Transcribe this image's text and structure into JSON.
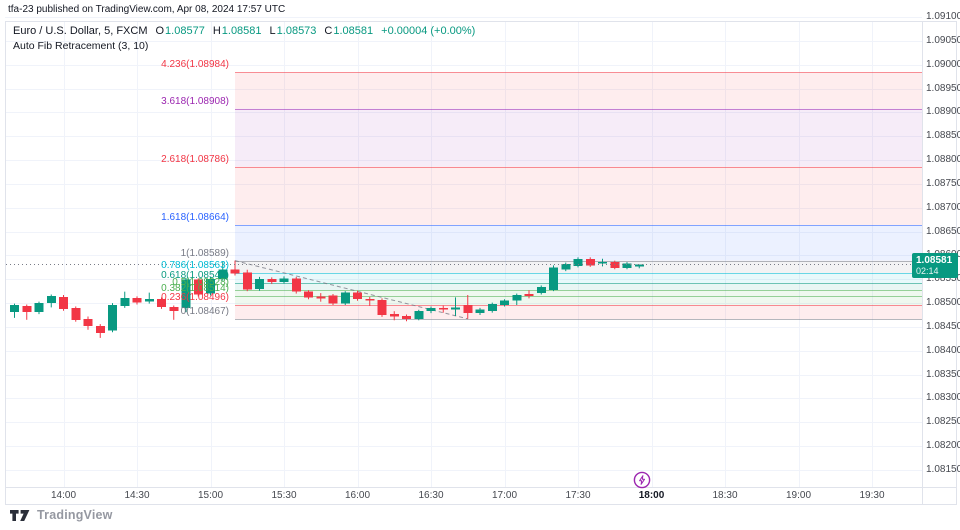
{
  "attribution": "tfa-23 published on TradingView.com, Apr 08, 2024 17:57 UTC",
  "legend": {
    "title": "Euro / U.S. Dollar, 5, FXCM",
    "ohlc": [
      {
        "label": "O",
        "value": "1.08577"
      },
      {
        "label": "H",
        "value": "1.08581"
      },
      {
        "label": "L",
        "value": "1.08573"
      },
      {
        "label": "C",
        "value": "1.08581"
      }
    ],
    "change": "+0.00004 (+0.00%)",
    "indicator": "Auto Fib Retracement (3, 10)"
  },
  "price_badge": {
    "price": "1.08581",
    "countdown": "02:14",
    "color": "#089981"
  },
  "logo": {
    "text": "TradingView"
  },
  "colors": {
    "up": "#089981",
    "down": "#f23645",
    "grid": "#f0f3fa",
    "border": "#e0e3eb",
    "axis_text": "#45484f",
    "title_text": "#131722",
    "badge_bg": "#089981",
    "event": "#9c27b0",
    "price_line": "#787b86",
    "pivot_line": "#787b86"
  },
  "chart_data": {
    "type": "candlestick",
    "title": "Euro / U.S. Dollar, 5, FXCM",
    "interval_minutes": 5,
    "last_price": 1.08581,
    "ylim": [
      1.0815,
      1.091
    ],
    "grid": true,
    "price_axis": {
      "step": 0.0005,
      "labels": [
        "1.09100",
        "1.09050",
        "1.09000",
        "1.08950",
        "1.08900",
        "1.08850",
        "1.08800",
        "1.08750",
        "1.08700",
        "1.08650",
        "1.08600",
        "1.08550",
        "1.08500",
        "1.08450",
        "1.08400",
        "1.08350",
        "1.08300",
        "1.08250",
        "1.08200",
        "1.08150"
      ]
    },
    "time_axis": {
      "ticks": [
        {
          "label": "14:00",
          "em": false
        },
        {
          "label": "14:30",
          "em": false
        },
        {
          "label": "15:00",
          "em": false
        },
        {
          "label": "15:30",
          "em": false
        },
        {
          "label": "16:00",
          "em": false
        },
        {
          "label": "16:30",
          "em": false
        },
        {
          "label": "17:00",
          "em": false
        },
        {
          "label": "17:30",
          "em": false
        },
        {
          "label": "18:00",
          "em": true
        },
        {
          "label": "18:30",
          "em": false
        },
        {
          "label": "19:00",
          "em": false
        },
        {
          "label": "19:30",
          "em": false
        }
      ]
    },
    "event_marker": {
      "time": "17:56",
      "icon": "lightning-icon",
      "color": "#9c27b0"
    },
    "fib": {
      "name": "Auto Fib Retracement (3, 10)",
      "start": {
        "time": "15:10",
        "price": 1.08589
      },
      "end": {
        "time": "16:45",
        "price": 1.08467
      },
      "levels": [
        {
          "level": "4.236",
          "price": 1.08984,
          "color": "#f23645",
          "label": "4.236(1.08984)"
        },
        {
          "level": "3.618",
          "price": 1.08908,
          "color": "#9c27b0",
          "label": "3.618(1.08908)"
        },
        {
          "level": "2.618",
          "price": 1.08786,
          "color": "#f23645",
          "label": "2.618(1.08786)"
        },
        {
          "level": "1.618",
          "price": 1.08664,
          "color": "#2962ff",
          "label": "1.618(1.08664)"
        },
        {
          "level": "1",
          "price": 1.08589,
          "color": "#787b86",
          "label": "1(1.08589)"
        },
        {
          "level": "0.786",
          "price": 1.08563,
          "color": "#00bcd4",
          "label": "0.786(1.08563)"
        },
        {
          "level": "0.618",
          "price": 1.08542,
          "color": "#089981",
          "label": "0.618(1.08542)"
        },
        {
          "level": "0.5",
          "price": 1.08528,
          "color": "#4caf50",
          "label": "0.5(1.08528)"
        },
        {
          "level": "0.382",
          "price": 1.08514,
          "color": "#4caf50",
          "label": "0.382(1.08514)"
        },
        {
          "level": "0.236",
          "price": 1.08496,
          "color": "#f23645",
          "label": "0.236(1.08496)"
        },
        {
          "level": "0",
          "price": 1.08467,
          "color": "#787b86",
          "label": "0(1.08467)"
        }
      ]
    },
    "candles": [
      {
        "t": "13:40",
        "o": 1.08481,
        "h": 1.08499,
        "l": 1.08469,
        "c": 1.08496
      },
      {
        "t": "13:45",
        "o": 1.08494,
        "h": 1.08497,
        "l": 1.08465,
        "c": 1.08481
      },
      {
        "t": "13:50",
        "o": 1.08481,
        "h": 1.08503,
        "l": 1.08477,
        "c": 1.085
      },
      {
        "t": "13:55",
        "o": 1.085,
        "h": 1.08518,
        "l": 1.08491,
        "c": 1.08515
      },
      {
        "t": "14:00",
        "o": 1.08513,
        "h": 1.08517,
        "l": 1.08484,
        "c": 1.08488
      },
      {
        "t": "14:05",
        "o": 1.0849,
        "h": 1.08493,
        "l": 1.08461,
        "c": 1.08465
      },
      {
        "t": "14:10",
        "o": 1.08467,
        "h": 1.08472,
        "l": 1.08444,
        "c": 1.08452
      },
      {
        "t": "14:15",
        "o": 1.08452,
        "h": 1.08456,
        "l": 1.08427,
        "c": 1.08437
      },
      {
        "t": "14:20",
        "o": 1.08443,
        "h": 1.085,
        "l": 1.08439,
        "c": 1.08496
      },
      {
        "t": "14:25",
        "o": 1.08494,
        "h": 1.08524,
        "l": 1.0849,
        "c": 1.08511
      },
      {
        "t": "14:30",
        "o": 1.08511,
        "h": 1.08514,
        "l": 1.08497,
        "c": 1.08501
      },
      {
        "t": "14:35",
        "o": 1.08503,
        "h": 1.08522,
        "l": 1.08499,
        "c": 1.08509
      },
      {
        "t": "14:40",
        "o": 1.08509,
        "h": 1.08512,
        "l": 1.08488,
        "c": 1.08492
      },
      {
        "t": "14:45",
        "o": 1.08492,
        "h": 1.08495,
        "l": 1.08465,
        "c": 1.08483
      },
      {
        "t": "14:50",
        "o": 1.0849,
        "h": 1.08553,
        "l": 1.08481,
        "c": 1.08549
      },
      {
        "t": "14:55",
        "o": 1.08549,
        "h": 1.08552,
        "l": 1.08514,
        "c": 1.08518
      },
      {
        "t": "15:00",
        "o": 1.0852,
        "h": 1.08555,
        "l": 1.08516,
        "c": 1.08551
      },
      {
        "t": "15:05",
        "o": 1.08551,
        "h": 1.08587,
        "l": 1.08547,
        "c": 1.0857
      },
      {
        "t": "15:10",
        "o": 1.0857,
        "h": 1.08589,
        "l": 1.08558,
        "c": 1.08562
      },
      {
        "t": "15:15",
        "o": 1.08564,
        "h": 1.0857,
        "l": 1.08525,
        "c": 1.08529
      },
      {
        "t": "15:20",
        "o": 1.0853,
        "h": 1.08555,
        "l": 1.08526,
        "c": 1.08551
      },
      {
        "t": "15:25",
        "o": 1.08551,
        "h": 1.08554,
        "l": 1.0854,
        "c": 1.08544
      },
      {
        "t": "15:30",
        "o": 1.08544,
        "h": 1.08556,
        "l": 1.08541,
        "c": 1.08552
      },
      {
        "t": "15:35",
        "o": 1.08552,
        "h": 1.08555,
        "l": 1.0852,
        "c": 1.08524
      },
      {
        "t": "15:40",
        "o": 1.08524,
        "h": 1.08527,
        "l": 1.08508,
        "c": 1.08512
      },
      {
        "t": "15:45",
        "o": 1.08514,
        "h": 1.08521,
        "l": 1.08503,
        "c": 1.0851
      },
      {
        "t": "15:50",
        "o": 1.08516,
        "h": 1.08519,
        "l": 1.08496,
        "c": 1.08499
      },
      {
        "t": "15:55",
        "o": 1.08499,
        "h": 1.08525,
        "l": 1.08496,
        "c": 1.08522
      },
      {
        "t": "16:00",
        "o": 1.08522,
        "h": 1.08526,
        "l": 1.08505,
        "c": 1.08509
      },
      {
        "t": "16:05",
        "o": 1.08509,
        "h": 1.08513,
        "l": 1.08494,
        "c": 1.08505
      },
      {
        "t": "16:10",
        "o": 1.08507,
        "h": 1.0851,
        "l": 1.08471,
        "c": 1.08475
      },
      {
        "t": "16:15",
        "o": 1.08477,
        "h": 1.08483,
        "l": 1.08464,
        "c": 1.08472
      },
      {
        "t": "16:20",
        "o": 1.08473,
        "h": 1.08476,
        "l": 1.08462,
        "c": 1.08467
      },
      {
        "t": "16:25",
        "o": 1.08467,
        "h": 1.08486,
        "l": 1.08464,
        "c": 1.08483
      },
      {
        "t": "16:30",
        "o": 1.08483,
        "h": 1.08493,
        "l": 1.08479,
        "c": 1.0849
      },
      {
        "t": "16:35",
        "o": 1.0849,
        "h": 1.08495,
        "l": 1.0848,
        "c": 1.08487
      },
      {
        "t": "16:40",
        "o": 1.08487,
        "h": 1.08512,
        "l": 1.08473,
        "c": 1.08491
      },
      {
        "t": "16:45",
        "o": 1.08496,
        "h": 1.08517,
        "l": 1.08467,
        "c": 1.08479
      },
      {
        "t": "16:50",
        "o": 1.08479,
        "h": 1.0849,
        "l": 1.08475,
        "c": 1.08487
      },
      {
        "t": "16:55",
        "o": 1.08483,
        "h": 1.08501,
        "l": 1.0848,
        "c": 1.08498
      },
      {
        "t": "17:00",
        "o": 1.08496,
        "h": 1.08508,
        "l": 1.08493,
        "c": 1.08505
      },
      {
        "t": "17:05",
        "o": 1.08505,
        "h": 1.0852,
        "l": 1.08496,
        "c": 1.08517
      },
      {
        "t": "17:10",
        "o": 1.08519,
        "h": 1.08527,
        "l": 1.0851,
        "c": 1.08515
      },
      {
        "t": "17:15",
        "o": 1.08521,
        "h": 1.08537,
        "l": 1.08518,
        "c": 1.08534
      },
      {
        "t": "17:20",
        "o": 1.08528,
        "h": 1.08579,
        "l": 1.08525,
        "c": 1.08575
      },
      {
        "t": "17:25",
        "o": 1.0857,
        "h": 1.08585,
        "l": 1.08567,
        "c": 1.08582
      },
      {
        "t": "17:30",
        "o": 1.08578,
        "h": 1.08596,
        "l": 1.08575,
        "c": 1.08593
      },
      {
        "t": "17:35",
        "o": 1.08593,
        "h": 1.08596,
        "l": 1.08576,
        "c": 1.08579
      },
      {
        "t": "17:40",
        "o": 1.08583,
        "h": 1.08593,
        "l": 1.08577,
        "c": 1.08586
      },
      {
        "t": "17:45",
        "o": 1.08586,
        "h": 1.08589,
        "l": 1.08571,
        "c": 1.08574
      },
      {
        "t": "17:50",
        "o": 1.08574,
        "h": 1.08586,
        "l": 1.08571,
        "c": 1.08583
      },
      {
        "t": "17:55",
        "o": 1.08577,
        "h": 1.08581,
        "l": 1.08573,
        "c": 1.08581
      }
    ]
  }
}
